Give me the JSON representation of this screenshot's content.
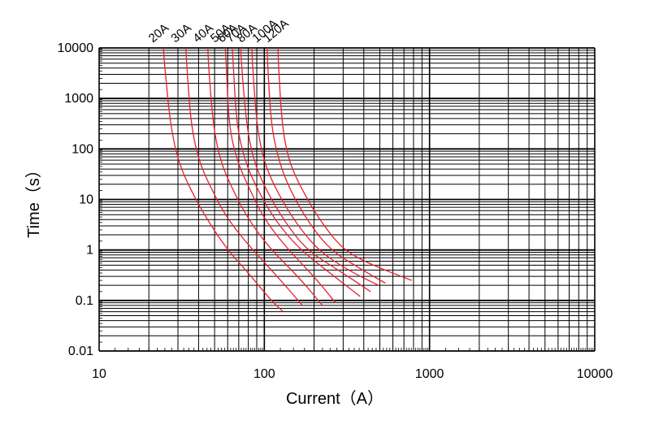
{
  "chart_data": {
    "type": "line",
    "xlabel": "Current（A）",
    "ylabel": "Time（s）",
    "x_scale": "log",
    "y_scale": "log",
    "xlim": [
      10,
      10000
    ],
    "ylim": [
      0.01,
      10000
    ],
    "x_ticks": [
      "10",
      "100",
      "1000",
      "10000"
    ],
    "y_ticks": [
      "10000",
      "1000",
      "100",
      "10",
      "1",
      "0.1",
      "0.01"
    ],
    "grid": true,
    "line_color": "#e8202a",
    "series": [
      {
        "name": "20A",
        "points": [
          [
            24.5,
            10000
          ],
          [
            25,
            4000
          ],
          [
            27,
            300
          ],
          [
            30,
            60
          ],
          [
            35,
            18
          ],
          [
            45,
            4
          ],
          [
            60,
            1
          ],
          [
            80,
            0.35
          ],
          [
            110,
            0.1
          ],
          [
            130,
            0.06
          ]
        ]
      },
      {
        "name": "30A",
        "points": [
          [
            33.5,
            10000
          ],
          [
            34,
            4000
          ],
          [
            36,
            300
          ],
          [
            40,
            60
          ],
          [
            47,
            18
          ],
          [
            60,
            4
          ],
          [
            85,
            1
          ],
          [
            120,
            0.3
          ],
          [
            170,
            0.08
          ]
        ]
      },
      {
        "name": "40A",
        "points": [
          [
            45.5,
            10000
          ],
          [
            46,
            4000
          ],
          [
            49,
            300
          ],
          [
            54,
            60
          ],
          [
            63,
            18
          ],
          [
            80,
            4
          ],
          [
            110,
            1
          ],
          [
            160,
            0.3
          ],
          [
            225,
            0.08
          ]
        ]
      },
      {
        "name": "50A",
        "points": [
          [
            58,
            10000
          ],
          [
            59,
            4000
          ],
          [
            61,
            300
          ],
          [
            68,
            60
          ],
          [
            80,
            18
          ],
          [
            100,
            4
          ],
          [
            140,
            1
          ],
          [
            200,
            0.3
          ],
          [
            270,
            0.09
          ]
        ]
      },
      {
        "name": "60A",
        "points": [
          [
            64,
            10000
          ],
          [
            65,
            4000
          ],
          [
            68,
            300
          ],
          [
            76,
            60
          ],
          [
            89,
            18
          ],
          [
            115,
            4
          ],
          [
            165,
            1
          ],
          [
            250,
            0.35
          ],
          [
            380,
            0.12
          ]
        ]
      },
      {
        "name": "70A",
        "points": [
          [
            72,
            10000
          ],
          [
            73,
            4000
          ],
          [
            78,
            300
          ],
          [
            86,
            60
          ],
          [
            100,
            18
          ],
          [
            130,
            4
          ],
          [
            180,
            1
          ],
          [
            280,
            0.4
          ],
          [
            440,
            0.15
          ]
        ]
      },
      {
        "name": "80A",
        "points": [
          [
            84,
            10000
          ],
          [
            85,
            4000
          ],
          [
            90,
            300
          ],
          [
            99,
            60
          ],
          [
            115,
            18
          ],
          [
            150,
            4
          ],
          [
            210,
            1
          ],
          [
            320,
            0.4
          ],
          [
            490,
            0.2
          ]
        ]
      },
      {
        "name": "100A",
        "points": [
          [
            104,
            10000
          ],
          [
            105,
            4000
          ],
          [
            110,
            300
          ],
          [
            122,
            60
          ],
          [
            140,
            18
          ],
          [
            180,
            4
          ],
          [
            250,
            1
          ],
          [
            370,
            0.45
          ],
          [
            540,
            0.22
          ]
        ]
      },
      {
        "name": "120A",
        "points": [
          [
            121,
            10000
          ],
          [
            122,
            4000
          ],
          [
            128,
            300
          ],
          [
            140,
            60
          ],
          [
            165,
            18
          ],
          [
            215,
            4
          ],
          [
            300,
            1
          ],
          [
            450,
            0.5
          ],
          [
            780,
            0.25
          ]
        ]
      }
    ]
  }
}
